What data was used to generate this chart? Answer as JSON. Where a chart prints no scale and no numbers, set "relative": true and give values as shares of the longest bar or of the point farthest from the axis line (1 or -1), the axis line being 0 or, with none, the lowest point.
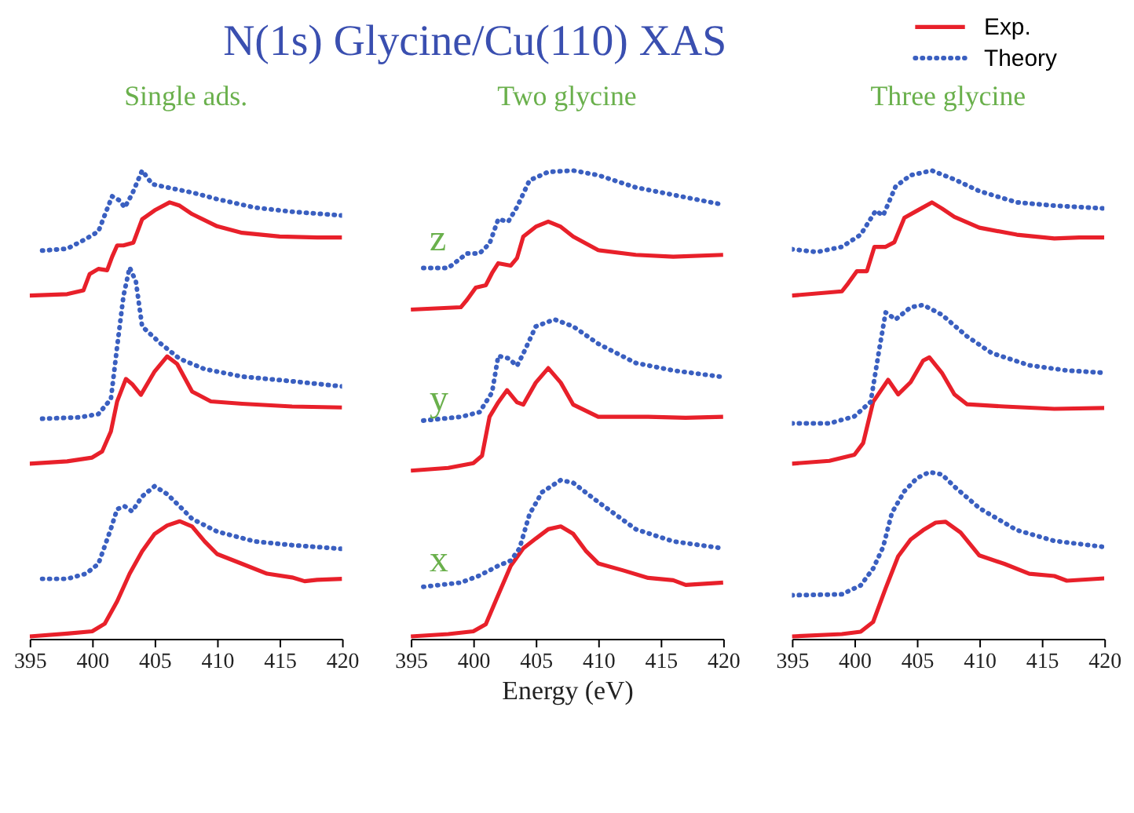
{
  "chart_data": [
    {
      "type": "line",
      "title": "Single ads.",
      "relative": true,
      "xlim": [
        395,
        420
      ],
      "xticks": [
        395,
        400,
        405,
        410,
        415,
        420
      ],
      "annotations": [
        "N(1s) Glycine/Cu(110)  XAS"
      ],
      "series": [
        {
          "color": "#e8202a",
          "line_style": "solid",
          "x": [
            395,
            398,
            399.3,
            399.8,
            400.5,
            401.2,
            401.6,
            402,
            402.5,
            403.3,
            404,
            405,
            406.2,
            407,
            408,
            410,
            412,
            415,
            418,
            420
          ],
          "values": [
            0.733,
            0.736,
            0.744,
            0.779,
            0.79,
            0.787,
            0.816,
            0.84,
            0.84,
            0.846,
            0.896,
            0.915,
            0.932,
            0.925,
            0.907,
            0.881,
            0.867,
            0.859,
            0.857,
            0.857
          ]
        },
        {
          "color": "#3a5fc0",
          "line_style": "dotted",
          "x": [
            396,
            398,
            399.5,
            400.5,
            401.2,
            401.6,
            402.2,
            402.6,
            403.2,
            404,
            404.8,
            406,
            408,
            410,
            413,
            416,
            420
          ],
          "values": [
            0.829,
            0.833,
            0.854,
            0.87,
            0.918,
            0.945,
            0.936,
            0.921,
            0.95,
            1.0,
            0.971,
            0.964,
            0.953,
            0.939,
            0.921,
            0.912,
            0.904
          ]
        },
        {
          "color": "#e8202a",
          "line_style": "solid",
          "x": [
            395,
            398,
            400,
            400.8,
            401.5,
            402,
            402.7,
            403.2,
            403.9,
            405,
            406,
            406.8,
            408,
            409.5,
            412,
            416,
            420
          ],
          "values": [
            0.374,
            0.379,
            0.387,
            0.4,
            0.443,
            0.507,
            0.555,
            0.544,
            0.521,
            0.571,
            0.603,
            0.587,
            0.528,
            0.507,
            0.502,
            0.496,
            0.494
          ]
        },
        {
          "color": "#3a5fc0",
          "line_style": "dotted",
          "x": [
            396,
            399,
            400.5,
            401.5,
            402,
            402.5,
            403,
            403.5,
            404,
            405.5,
            407,
            409,
            412,
            416,
            420
          ],
          "values": [
            0.47,
            0.473,
            0.48,
            0.512,
            0.624,
            0.731,
            0.793,
            0.763,
            0.667,
            0.63,
            0.598,
            0.576,
            0.56,
            0.55,
            0.539
          ]
        },
        {
          "color": "#e8202a",
          "line_style": "solid",
          "x": [
            395,
            398,
            400,
            401,
            402,
            403,
            404,
            405,
            406,
            407,
            408,
            409,
            410,
            412,
            414,
            416,
            417,
            418,
            420
          ],
          "values": [
            0.005,
            0.011,
            0.016,
            0.032,
            0.08,
            0.139,
            0.187,
            0.224,
            0.242,
            0.251,
            0.24,
            0.208,
            0.181,
            0.16,
            0.139,
            0.131,
            0.123,
            0.126,
            0.128
          ]
        },
        {
          "color": "#3a5fc0",
          "line_style": "dotted",
          "x": [
            396,
            398,
            399.5,
            400.5,
            401.5,
            402,
            402.6,
            403.2,
            404,
            405,
            406,
            407,
            408,
            410,
            413,
            416,
            420
          ],
          "values": [
            0.128,
            0.128,
            0.139,
            0.16,
            0.235,
            0.277,
            0.283,
            0.272,
            0.304,
            0.326,
            0.309,
            0.283,
            0.256,
            0.229,
            0.208,
            0.2,
            0.192
          ]
        }
      ]
    },
    {
      "type": "line",
      "title": "Two glycine",
      "xlabel": "Energy (eV)",
      "relative": true,
      "xlim": [
        395,
        420
      ],
      "xticks": [
        395,
        400,
        405,
        410,
        415,
        420
      ],
      "annotations": [
        "z",
        "y",
        "x"
      ],
      "series": [
        {
          "color": "#e8202a",
          "line_style": "solid",
          "x": [
            395,
            399,
            399.5,
            400.2,
            401,
            401.5,
            402,
            403,
            403.5,
            404,
            405,
            406,
            407,
            408,
            410,
            413,
            416,
            420
          ],
          "values": [
            0.703,
            0.708,
            0.724,
            0.75,
            0.755,
            0.781,
            0.802,
            0.797,
            0.813,
            0.859,
            0.88,
            0.891,
            0.88,
            0.859,
            0.83,
            0.82,
            0.816,
            0.82
          ]
        },
        {
          "color": "#3a5fc0",
          "line_style": "dotted",
          "x": [
            396,
            398,
            399.5,
            400.5,
            401.3,
            402,
            402.8,
            403.5,
            404.5,
            406,
            408,
            410,
            413,
            416,
            420
          ],
          "values": [
            0.792,
            0.792,
            0.823,
            0.823,
            0.844,
            0.896,
            0.891,
            0.922,
            0.979,
            0.997,
            1.0,
            0.99,
            0.964,
            0.948,
            0.927
          ]
        },
        {
          "color": "#e8202a",
          "line_style": "solid",
          "x": [
            395,
            398,
            400,
            400.7,
            401.3,
            402,
            402.7,
            403.5,
            404,
            405,
            406,
            407,
            408,
            410,
            414,
            417,
            420
          ],
          "values": [
            0.359,
            0.365,
            0.375,
            0.391,
            0.474,
            0.505,
            0.531,
            0.505,
            0.5,
            0.547,
            0.578,
            0.547,
            0.5,
            0.474,
            0.474,
            0.472,
            0.474
          ]
        },
        {
          "color": "#3a5fc0",
          "line_style": "dotted",
          "x": [
            396,
            399,
            400.5,
            401.5,
            402,
            402.8,
            403.5,
            404,
            405,
            406.5,
            408,
            410,
            413,
            416,
            420
          ],
          "values": [
            0.466,
            0.474,
            0.484,
            0.526,
            0.604,
            0.599,
            0.583,
            0.609,
            0.667,
            0.682,
            0.667,
            0.63,
            0.589,
            0.573,
            0.559
          ]
        },
        {
          "color": "#e8202a",
          "line_style": "solid",
          "x": [
            395,
            398,
            400,
            401,
            402,
            403,
            404,
            405,
            406,
            407,
            408,
            409,
            410,
            412,
            414,
            416,
            417,
            420
          ],
          "values": [
            0.005,
            0.01,
            0.016,
            0.031,
            0.094,
            0.156,
            0.193,
            0.214,
            0.234,
            0.24,
            0.224,
            0.188,
            0.161,
            0.146,
            0.13,
            0.125,
            0.115,
            0.12
          ]
        },
        {
          "color": "#3a5fc0",
          "line_style": "dotted",
          "x": [
            396,
            399,
            400.5,
            402,
            403,
            403.7,
            404.5,
            405.5,
            407,
            408,
            410,
            413,
            416,
            420
          ],
          "values": [
            0.111,
            0.12,
            0.135,
            0.156,
            0.167,
            0.193,
            0.266,
            0.313,
            0.339,
            0.333,
            0.292,
            0.234,
            0.208,
            0.193
          ]
        }
      ]
    },
    {
      "type": "line",
      "title": "Three glycine",
      "relative": true,
      "xlim": [
        395,
        420
      ],
      "xticks": [
        395,
        400,
        405,
        410,
        415,
        420
      ],
      "legend": "top right",
      "series": [
        {
          "name": "Exp.",
          "color": "#e8202a",
          "line_style": "solid",
          "x": [
            395,
            399,
            399.5,
            400.2,
            401,
            401.6,
            402.5,
            403.2,
            404,
            405,
            406.2,
            407,
            408,
            410,
            413,
            416,
            418,
            420
          ],
          "values": [
            0.733,
            0.742,
            0.759,
            0.785,
            0.785,
            0.837,
            0.837,
            0.847,
            0.899,
            0.914,
            0.932,
            0.919,
            0.901,
            0.878,
            0.863,
            0.855,
            0.857,
            0.857
          ]
        },
        {
          "name": "Theory",
          "color": "#3a5fc0",
          "line_style": "dotted",
          "x": [
            395,
            397,
            399,
            400.5,
            401.7,
            402.3,
            403.3,
            404.5,
            406.2,
            408,
            410,
            413,
            416,
            420
          ],
          "values": [
            0.832,
            0.826,
            0.837,
            0.863,
            0.914,
            0.904,
            0.966,
            0.99,
            1.0,
            0.981,
            0.956,
            0.932,
            0.925,
            0.919
          ]
        },
        {
          "color": "#e8202a",
          "line_style": "solid",
          "x": [
            395,
            398,
            400,
            400.7,
            401.5,
            402.7,
            403.5,
            404.5,
            405.5,
            406,
            407,
            408,
            409,
            412,
            416,
            420
          ],
          "values": [
            0.374,
            0.38,
            0.393,
            0.418,
            0.506,
            0.553,
            0.522,
            0.548,
            0.594,
            0.601,
            0.568,
            0.522,
            0.501,
            0.496,
            0.491,
            0.493
          ]
        },
        {
          "color": "#3a5fc0",
          "line_style": "dotted",
          "x": [
            395,
            398,
            400,
            401.3,
            402,
            402.5,
            403.3,
            404.5,
            405.5,
            407,
            409,
            411,
            414,
            417,
            420
          ],
          "values": [
            0.46,
            0.46,
            0.475,
            0.506,
            0.62,
            0.697,
            0.682,
            0.708,
            0.713,
            0.692,
            0.646,
            0.61,
            0.584,
            0.573,
            0.568
          ]
        },
        {
          "color": "#e8202a",
          "line_style": "solid",
          "x": [
            395,
            399,
            400.5,
            401.5,
            402.5,
            403.5,
            404.5,
            405.5,
            406.5,
            407.3,
            408.5,
            410,
            412,
            414,
            416,
            417,
            420
          ],
          "values": [
            0.005,
            0.01,
            0.015,
            0.036,
            0.108,
            0.176,
            0.212,
            0.232,
            0.248,
            0.25,
            0.227,
            0.178,
            0.16,
            0.139,
            0.134,
            0.124,
            0.129
          ]
        },
        {
          "color": "#3a5fc0",
          "line_style": "dotted",
          "x": [
            395,
            399,
            400.5,
            401.5,
            402.3,
            403,
            404,
            405,
            406,
            407,
            408,
            410,
            413,
            416,
            420
          ],
          "values": [
            0.093,
            0.095,
            0.114,
            0.15,
            0.196,
            0.269,
            0.315,
            0.343,
            0.356,
            0.351,
            0.325,
            0.279,
            0.232,
            0.209,
            0.196
          ]
        }
      ]
    }
  ]
}
